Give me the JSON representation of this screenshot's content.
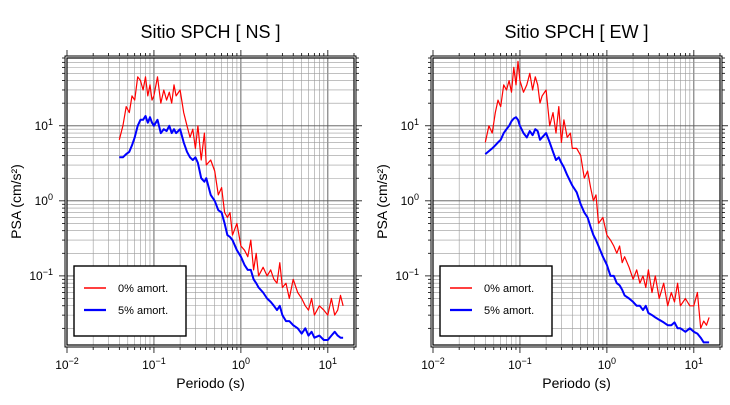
{
  "chart_data": [
    {
      "type": "line",
      "title": "Sitio SPCH [ NS ]",
      "xlabel": "Periodo (s)",
      "ylabel": "PSA (cm/s²)",
      "x_scale": "log",
      "y_scale": "log",
      "xlim": [
        0.01,
        20
      ],
      "ylim": [
        0.012,
        80
      ],
      "x_ticks": [
        {
          "value": 0.01,
          "base": "10",
          "exp": "−2"
        },
        {
          "value": 0.1,
          "base": "10",
          "exp": "−1"
        },
        {
          "value": 1,
          "base": "10",
          "exp": "0"
        },
        {
          "value": 10,
          "base": "10",
          "exp": "1"
        }
      ],
      "y_ticks": [
        {
          "value": 0.1,
          "base": "10",
          "exp": "−1"
        },
        {
          "value": 1,
          "base": "10",
          "exp": "0"
        },
        {
          "value": 10,
          "base": "10",
          "exp": "1"
        }
      ],
      "grid": true,
      "legend_position": "bottom-left",
      "series": [
        {
          "name": "0% amort.",
          "color": "#ff0000",
          "x": [
            0.04,
            0.044,
            0.048,
            0.052,
            0.056,
            0.06,
            0.065,
            0.07,
            0.075,
            0.08,
            0.085,
            0.09,
            0.095,
            0.1,
            0.11,
            0.12,
            0.13,
            0.14,
            0.15,
            0.16,
            0.17,
            0.18,
            0.2,
            0.22,
            0.24,
            0.26,
            0.28,
            0.3,
            0.32,
            0.35,
            0.38,
            0.4,
            0.45,
            0.5,
            0.55,
            0.6,
            0.65,
            0.7,
            0.75,
            0.8,
            0.9,
            1.0,
            1.1,
            1.2,
            1.3,
            1.4,
            1.5,
            1.6,
            1.8,
            2.0,
            2.2,
            2.4,
            2.6,
            2.8,
            3.0,
            3.3,
            3.6,
            4.0,
            4.5,
            5.0,
            5.5,
            6.0,
            6.5,
            7.0,
            8.0,
            9.0,
            10,
            11,
            12,
            13,
            14,
            15
          ],
          "y": [
            6.5,
            10,
            18,
            15,
            25,
            22,
            45,
            40,
            30,
            45,
            25,
            35,
            22,
            25,
            45,
            20,
            30,
            22,
            28,
            20,
            35,
            25,
            30,
            15,
            10,
            7,
            9,
            5,
            10,
            3.5,
            8,
            3,
            3.5,
            2.5,
            1.2,
            1.5,
            0.7,
            0.6,
            0.7,
            0.35,
            0.5,
            0.25,
            0.22,
            0.18,
            0.3,
            0.12,
            0.2,
            0.1,
            0.13,
            0.1,
            0.12,
            0.09,
            0.08,
            0.15,
            0.07,
            0.08,
            0.05,
            0.09,
            0.06,
            0.05,
            0.04,
            0.035,
            0.05,
            0.03,
            0.04,
            0.035,
            0.03,
            0.05,
            0.03,
            0.035,
            0.055,
            0.04
          ]
        },
        {
          "name": "5% amort.",
          "color": "#0000ff",
          "x": [
            0.04,
            0.044,
            0.048,
            0.052,
            0.056,
            0.06,
            0.065,
            0.07,
            0.075,
            0.08,
            0.085,
            0.09,
            0.095,
            0.1,
            0.11,
            0.12,
            0.13,
            0.14,
            0.15,
            0.16,
            0.17,
            0.18,
            0.2,
            0.22,
            0.24,
            0.26,
            0.28,
            0.3,
            0.32,
            0.35,
            0.38,
            0.4,
            0.45,
            0.5,
            0.55,
            0.6,
            0.65,
            0.7,
            0.75,
            0.8,
            0.9,
            1.0,
            1.1,
            1.2,
            1.3,
            1.4,
            1.5,
            1.6,
            1.8,
            2.0,
            2.2,
            2.4,
            2.6,
            2.8,
            3.0,
            3.3,
            3.6,
            4.0,
            4.5,
            5.0,
            5.5,
            6.0,
            6.5,
            7.0,
            8.0,
            9.0,
            10,
            11,
            12,
            13,
            14,
            15
          ],
          "y": [
            3.8,
            3.8,
            4.2,
            4.5,
            5.5,
            7,
            10,
            12,
            12,
            13.5,
            11,
            13,
            11,
            10,
            12,
            8,
            9,
            8.5,
            10,
            8,
            9,
            8,
            9,
            6,
            4.5,
            3.8,
            3.5,
            3.8,
            3.2,
            2,
            1.8,
            2,
            1.2,
            1.0,
            0.75,
            0.7,
            0.5,
            0.35,
            0.33,
            0.3,
            0.22,
            0.18,
            0.14,
            0.12,
            0.12,
            0.09,
            0.08,
            0.07,
            0.06,
            0.05,
            0.045,
            0.04,
            0.035,
            0.04,
            0.03,
            0.025,
            0.025,
            0.022,
            0.02,
            0.017,
            0.02,
            0.016,
            0.018,
            0.015,
            0.016,
            0.014,
            0.014,
            0.016,
            0.018,
            0.016,
            0.015,
            0.015
          ]
        }
      ]
    },
    {
      "type": "line",
      "title": "Sitio SPCH [ EW ]",
      "xlabel": "Periodo (s)",
      "ylabel": "PSA (cm/s²)",
      "x_scale": "log",
      "y_scale": "log",
      "xlim": [
        0.01,
        20
      ],
      "ylim": [
        0.012,
        80
      ],
      "x_ticks": [
        {
          "value": 0.01,
          "base": "10",
          "exp": "−2"
        },
        {
          "value": 0.1,
          "base": "10",
          "exp": "−1"
        },
        {
          "value": 1,
          "base": "10",
          "exp": "0"
        },
        {
          "value": 10,
          "base": "10",
          "exp": "1"
        }
      ],
      "y_ticks": [
        {
          "value": 0.1,
          "base": "10",
          "exp": "−1"
        },
        {
          "value": 1,
          "base": "10",
          "exp": "0"
        },
        {
          "value": 10,
          "base": "10",
          "exp": "1"
        }
      ],
      "grid": true,
      "legend_position": "bottom-left",
      "series": [
        {
          "name": "0% amort.",
          "color": "#ff0000",
          "x": [
            0.04,
            0.044,
            0.048,
            0.052,
            0.056,
            0.06,
            0.065,
            0.07,
            0.075,
            0.08,
            0.085,
            0.09,
            0.095,
            0.1,
            0.11,
            0.12,
            0.13,
            0.14,
            0.15,
            0.16,
            0.17,
            0.18,
            0.2,
            0.22,
            0.24,
            0.26,
            0.28,
            0.3,
            0.32,
            0.35,
            0.38,
            0.4,
            0.45,
            0.5,
            0.55,
            0.6,
            0.65,
            0.7,
            0.75,
            0.8,
            0.9,
            1.0,
            1.1,
            1.2,
            1.3,
            1.4,
            1.5,
            1.6,
            1.8,
            2.0,
            2.2,
            2.4,
            2.6,
            2.8,
            3.0,
            3.3,
            3.6,
            4.0,
            4.5,
            5.0,
            5.5,
            6.0,
            6.5,
            7.0,
            8.0,
            9.0,
            10,
            11,
            12,
            13,
            14,
            15
          ],
          "y": [
            6,
            10,
            8,
            15,
            22,
            18,
            35,
            30,
            40,
            28,
            60,
            35,
            72,
            40,
            28,
            35,
            50,
            30,
            45,
            35,
            20,
            25,
            30,
            10,
            15,
            8,
            18,
            6,
            12,
            7,
            8,
            5,
            5,
            4,
            2,
            2.5,
            1.5,
            1.0,
            1.2,
            0.5,
            0.6,
            0.35,
            0.3,
            0.25,
            0.2,
            0.25,
            0.15,
            0.18,
            0.13,
            0.09,
            0.12,
            0.08,
            0.1,
            0.07,
            0.12,
            0.06,
            0.1,
            0.05,
            0.08,
            0.04,
            0.06,
            0.045,
            0.08,
            0.04,
            0.05,
            0.04,
            0.04,
            0.06,
            0.02,
            0.025,
            0.022,
            0.028
          ]
        },
        {
          "name": "5% amort.",
          "color": "#0000ff",
          "x": [
            0.04,
            0.044,
            0.048,
            0.052,
            0.056,
            0.06,
            0.065,
            0.07,
            0.075,
            0.08,
            0.085,
            0.09,
            0.095,
            0.1,
            0.11,
            0.12,
            0.13,
            0.14,
            0.15,
            0.16,
            0.17,
            0.18,
            0.2,
            0.22,
            0.24,
            0.26,
            0.28,
            0.3,
            0.32,
            0.35,
            0.38,
            0.4,
            0.45,
            0.5,
            0.55,
            0.6,
            0.65,
            0.7,
            0.75,
            0.8,
            0.9,
            1.0,
            1.1,
            1.2,
            1.3,
            1.4,
            1.5,
            1.6,
            1.8,
            2.0,
            2.2,
            2.4,
            2.6,
            2.8,
            3.0,
            3.3,
            3.6,
            4.0,
            4.5,
            5.0,
            5.5,
            6.0,
            6.5,
            7.0,
            8.0,
            9.0,
            10,
            11,
            12,
            13,
            14,
            15
          ],
          "y": [
            4.2,
            4.6,
            5,
            5.5,
            6,
            6.5,
            8,
            9,
            10,
            11.5,
            12.5,
            13,
            12,
            10,
            8,
            7,
            8.5,
            7.5,
            9,
            8.5,
            6.5,
            7,
            8,
            6,
            4.5,
            3.5,
            3.8,
            3.2,
            2.8,
            2.2,
            1.8,
            1.6,
            1.3,
            0.9,
            0.7,
            0.6,
            0.45,
            0.35,
            0.3,
            0.25,
            0.18,
            0.14,
            0.1,
            0.1,
            0.08,
            0.075,
            0.065,
            0.055,
            0.05,
            0.045,
            0.04,
            0.04,
            0.035,
            0.04,
            0.032,
            0.03,
            0.028,
            0.026,
            0.024,
            0.022,
            0.022,
            0.024,
            0.02,
            0.02,
            0.018,
            0.02,
            0.018,
            0.017,
            0.015,
            0.013,
            0.013,
            0.013
          ]
        }
      ]
    }
  ]
}
